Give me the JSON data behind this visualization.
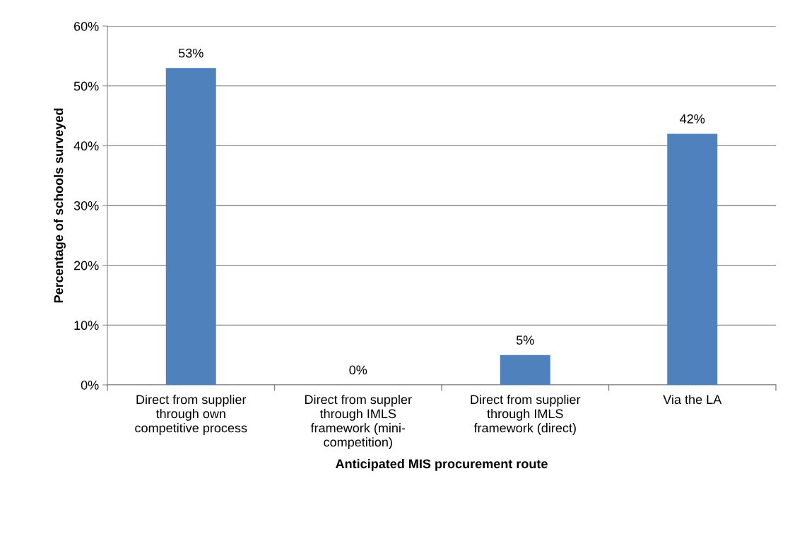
{
  "chart_data": {
    "type": "bar",
    "xlabel": "Anticipated MIS procurement route",
    "ylabel": "Percentage of schools surveyed",
    "categories": [
      "Direct from supplier\nthrough own\ncompetitive process",
      "Direct from suppler\nthrough IMLS\nframework (mini-\ncompetition)",
      "Direct from supplier\nthrough IMLS\nframework (direct)",
      "Via the LA"
    ],
    "values": [
      53,
      0,
      5,
      42
    ],
    "value_labels": [
      "53%",
      "0%",
      "5%",
      "42%"
    ],
    "color": "#4f81bd",
    "ylim": [
      0,
      60
    ],
    "yticks": [
      {
        "value": 0,
        "label": "0%"
      },
      {
        "value": 10,
        "label": "10%"
      },
      {
        "value": 20,
        "label": "20%"
      },
      {
        "value": 30,
        "label": "30%"
      },
      {
        "value": 40,
        "label": "40%"
      },
      {
        "value": 50,
        "label": "50%"
      },
      {
        "value": 60,
        "label": "60%"
      }
    ],
    "grid": "y",
    "legend": false
  }
}
